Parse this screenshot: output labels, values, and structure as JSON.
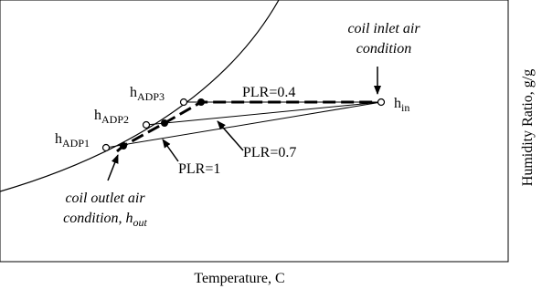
{
  "labels": {
    "inlet": [
      "coil inlet air",
      "condition"
    ],
    "h_in": {
      "base": "h",
      "sub": "in"
    },
    "adp1": {
      "base": "h",
      "sub": "ADP1"
    },
    "adp2": {
      "base": "h",
      "sub": "ADP2"
    },
    "adp3": {
      "base": "h",
      "sub": "ADP3"
    },
    "plr": [
      "PLR=0.4",
      "PLR=0.7",
      "PLR=1"
    ],
    "outlet": {
      "line1": "coil outlet air",
      "line2": "condition, h",
      "sub": "out"
    }
  },
  "axes": {
    "x": "Temperature, C",
    "y": "Humidity Ratio, g/g"
  }
}
